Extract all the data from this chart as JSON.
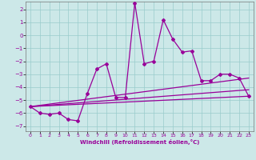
{
  "xlabel": "Windchill (Refroidissement éolien,°C)",
  "background_color": "#cce8e8",
  "grid_color": "#99cccc",
  "line_color": "#990099",
  "x_ticks": [
    0,
    1,
    2,
    3,
    4,
    5,
    6,
    7,
    8,
    9,
    10,
    11,
    12,
    13,
    14,
    15,
    16,
    17,
    18,
    19,
    20,
    21,
    22,
    23
  ],
  "y_ticks": [
    -7,
    -6,
    -5,
    -4,
    -3,
    -2,
    -1,
    0,
    1,
    2
  ],
  "xlim": [
    -0.5,
    23.5
  ],
  "ylim": [
    -7.4,
    2.6
  ],
  "series1_x": [
    0,
    1,
    2,
    3,
    4,
    5,
    6,
    7,
    8,
    9,
    10,
    11,
    12,
    13,
    14,
    15,
    16,
    17,
    18,
    19,
    20,
    21,
    22,
    23
  ],
  "series1_y": [
    -5.5,
    -6.0,
    -6.1,
    -6.0,
    -6.5,
    -6.6,
    -4.5,
    -2.6,
    -2.2,
    -4.8,
    -4.8,
    2.5,
    -2.2,
    -2.0,
    1.2,
    -0.3,
    -1.3,
    -1.2,
    -3.5,
    -3.5,
    -3.0,
    -3.0,
    -3.3,
    -4.7
  ],
  "trend_lines": [
    {
      "x0": 0,
      "y0": -5.5,
      "x1": 23,
      "y1": -4.7
    },
    {
      "x0": 0,
      "y0": -5.5,
      "x1": 23,
      "y1": -4.2
    },
    {
      "x0": 0,
      "y0": -5.5,
      "x1": 23,
      "y1": -3.3
    }
  ],
  "line_width": 0.9,
  "marker": "D",
  "marker_size": 2.0
}
